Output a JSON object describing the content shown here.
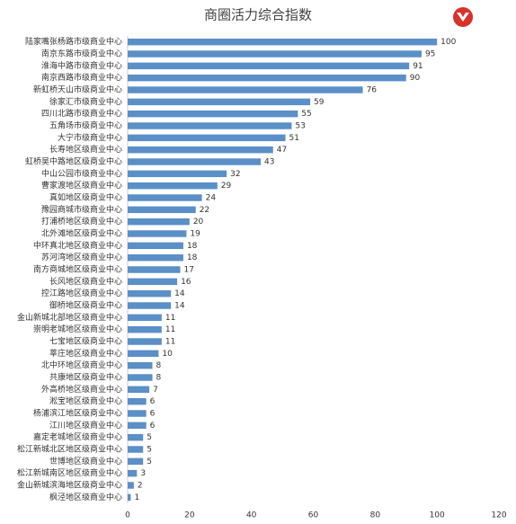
{
  "chart_data": {
    "type": "barh",
    "title": "商圈活力综合指数",
    "categories": [
      "陆家嘴张杨路市级商业中心",
      "南京东路市级商业中心",
      "淮海中路市级商业中心",
      "南京西路市级商业中心",
      "新虹桥天山市级商业中心",
      "徐家汇市级商业中心",
      "四川北路市级商业中心",
      "五角场市级商业中心",
      "大宁市级商业中心",
      "长寿地区级商业中心",
      "虹桥吴中路地区级商业中心",
      "中山公园市级商业中心",
      "曹家渡地区级商业中心",
      "真如地区级商业中心",
      "豫园商城市级商业中心",
      "打浦桥地区级商业中心",
      "北外滩地区级商业中心",
      "中环真北地区级商业中心",
      "苏河湾地区级商业中心",
      "南方商城地区级商业中心",
      "长风地区级商业中心",
      "控江路地区级商业中心",
      "御桥地区级商业中心",
      "金山新城北部地区级商业中心",
      "崇明老城地区级商业中心",
      "七宝地区级商业中心",
      "莘庄地区级商业中心",
      "北中环地区级商业中心",
      "共康地区级商业中心",
      "外高桥地区级商业中心",
      "淞宝地区级商业中心",
      "杨浦滨江地区级商业中心",
      "江川地区级商业中心",
      "嘉定老城地区级商业中心",
      "松江新城北区地区级商业中心",
      "世博地区级商业中心",
      "松江新城南区地区级商业中心",
      "金山新城滨海地区级商业中心",
      "枫泾地区级商业中心"
    ],
    "values": [
      100,
      95,
      91,
      90,
      76,
      59,
      55,
      53,
      51,
      47,
      43,
      32,
      29,
      24,
      22,
      20,
      19,
      18,
      18,
      17,
      16,
      14,
      14,
      11,
      11,
      11,
      10,
      8,
      8,
      7,
      6,
      6,
      6,
      5,
      5,
      5,
      3,
      2,
      1
    ],
    "color": "#5b8fc7",
    "xlim": [
      0,
      120
    ],
    "xticks": [
      0,
      20,
      40,
      60,
      80,
      100,
      120
    ],
    "grid": false
  }
}
